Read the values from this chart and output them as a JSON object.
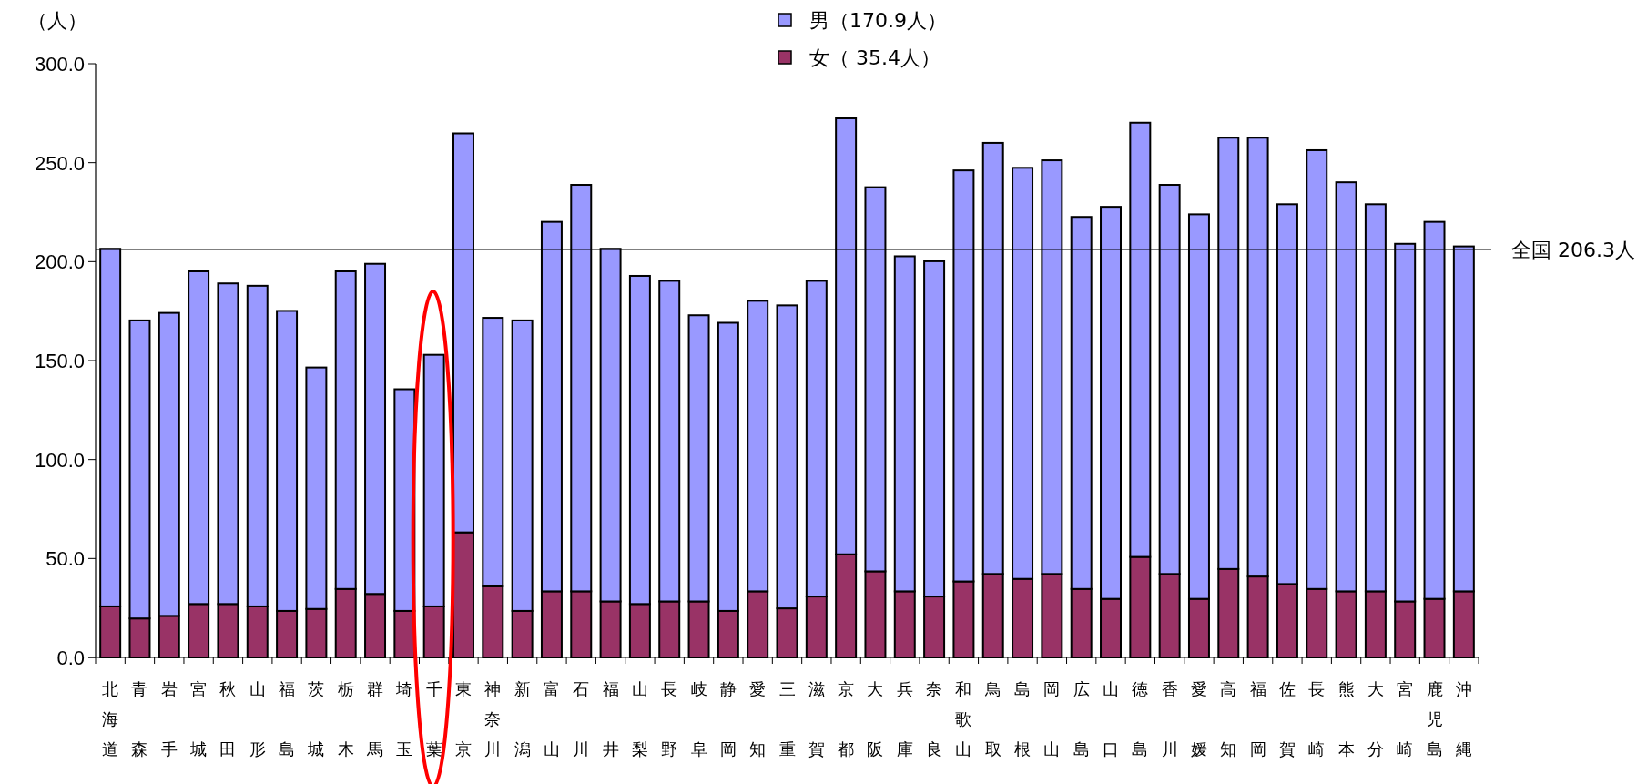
{
  "chart_data": {
    "type": "bar",
    "stacked": true,
    "ylabel": "（人）",
    "categories": [
      "北海道",
      "青森",
      "岩手",
      "宮城",
      "秋田",
      "山形",
      "福島",
      "茨城",
      "栃木",
      "群馬",
      "埼玉",
      "千葉",
      "東京",
      "神奈川",
      "新潟",
      "富山",
      "石川",
      "福井",
      "山梨",
      "長野",
      "岐阜",
      "静岡",
      "愛知",
      "三重",
      "滋賀",
      "京都",
      "大阪",
      "兵庫",
      "奈良",
      "和歌山",
      "鳥取",
      "島根",
      "岡山",
      "広島",
      "山口",
      "徳島",
      "香川",
      "愛媛",
      "高知",
      "福岡",
      "佐賀",
      "長崎",
      "熊本",
      "大分",
      "宮崎",
      "鹿児島",
      "沖縄"
    ],
    "series": [
      {
        "name": "女（ 35.4人）",
        "color": "#993366",
        "values": [
          25.8,
          19.7,
          21.0,
          27.0,
          27.0,
          25.8,
          23.5,
          24.5,
          34.6,
          32.1,
          23.5,
          25.8,
          63.2,
          35.9,
          23.5,
          33.4,
          33.4,
          28.3,
          27.0,
          28.3,
          28.3,
          23.5,
          33.4,
          24.8,
          30.8,
          52.1,
          43.5,
          33.4,
          30.8,
          38.4,
          42.2,
          39.7,
          42.2,
          34.6,
          29.6,
          50.8,
          42.2,
          29.6,
          44.7,
          40.9,
          37.1,
          34.6,
          33.4,
          33.4,
          28.3,
          29.6,
          33.4
        ]
      },
      {
        "name": "男（170.9人）",
        "color": "#9999ff",
        "values": [
          180.7,
          150.6,
          153.1,
          168.1,
          162.0,
          162.0,
          151.6,
          122.0,
          160.5,
          166.8,
          112.0,
          127.1,
          201.6,
          135.7,
          146.8,
          186.7,
          205.4,
          178.2,
          165.8,
          162.0,
          144.6,
          145.6,
          146.8,
          153.1,
          159.5,
          220.3,
          194.1,
          169.3,
          169.4,
          207.7,
          217.8,
          207.7,
          209.0,
          188.0,
          198.1,
          219.4,
          196.6,
          194.3,
          217.9,
          221.7,
          191.9,
          221.7,
          206.7,
          195.6,
          180.7,
          190.5,
          174.3
        ]
      }
    ],
    "ylim": [
      0,
      300
    ],
    "yticks": [
      {
        "value": 0,
        "label": "0.0"
      },
      {
        "value": 50,
        "label": "50.0"
      },
      {
        "value": 100,
        "label": "100.0"
      },
      {
        "value": 150,
        "label": "150.0"
      },
      {
        "value": 200,
        "label": "200.0"
      },
      {
        "value": 250,
        "label": "250.0"
      },
      {
        "value": 300,
        "label": "300.0"
      }
    ],
    "ref_lines": [
      {
        "axis": "y",
        "value": 206.3,
        "label": "全国 206.3人",
        "color": "#000000"
      }
    ],
    "legend": "top",
    "grid": false
  }
}
